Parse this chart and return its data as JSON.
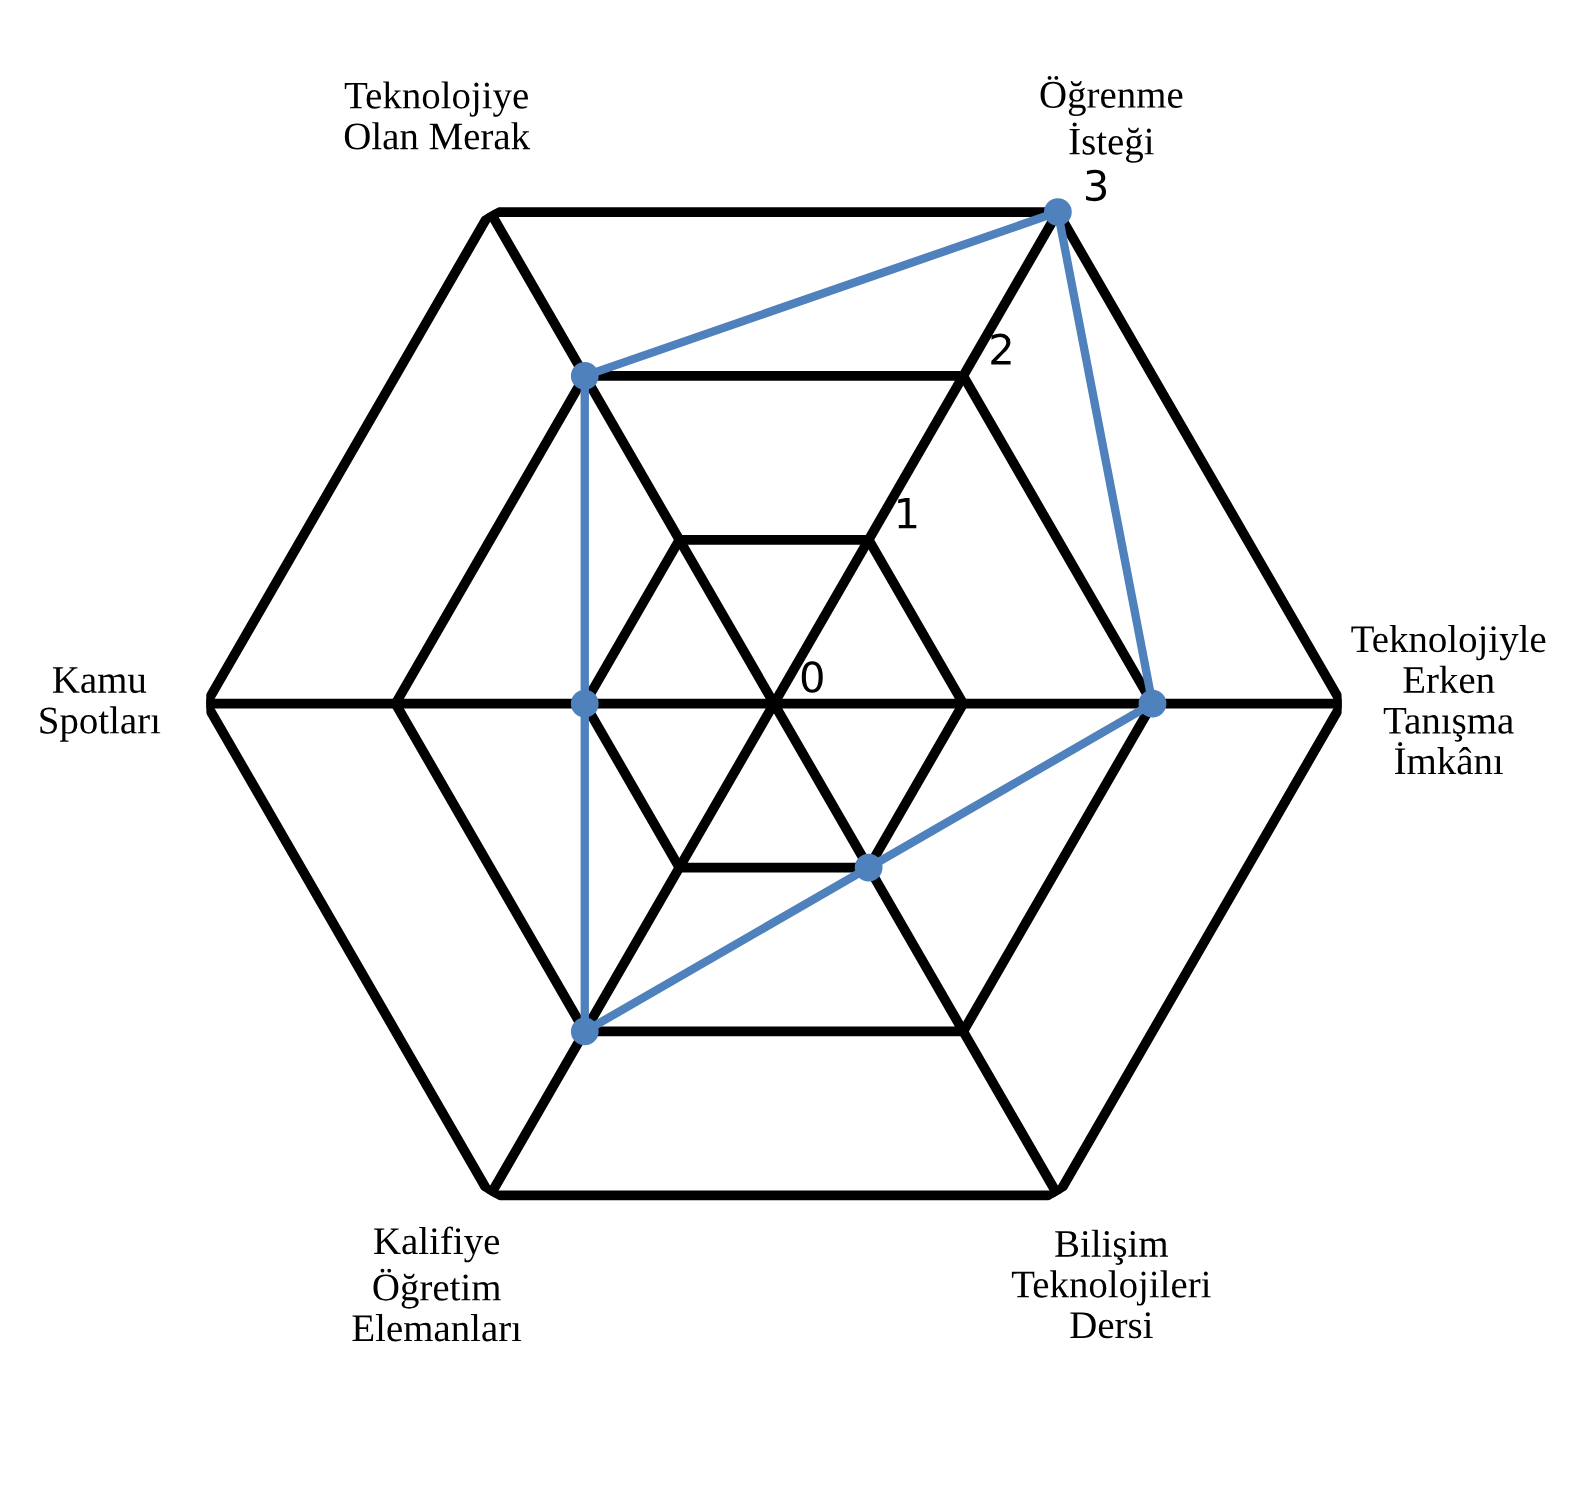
{
  "chart_data": {
    "type": "radar",
    "categories": [
      "Öğrenme\nİsteği",
      "Teknolojiyle\nErken\nTanışma\nİmkânı",
      "Bilişim\nTeknolojileri\nDersi",
      "Kalifiye\nÖğretim\nElemanları",
      "Kamu\nSpotları",
      "Teknolojiye\nOlan Merak"
    ],
    "series": [
      {
        "color": "#4f81bd",
        "values": [
          3,
          2,
          1,
          2,
          1,
          2
        ]
      }
    ],
    "ylim": [
      0,
      3
    ],
    "yticks": [
      0,
      1,
      2,
      3
    ],
    "grid": true,
    "marker": "circle",
    "line_style": "solid"
  }
}
